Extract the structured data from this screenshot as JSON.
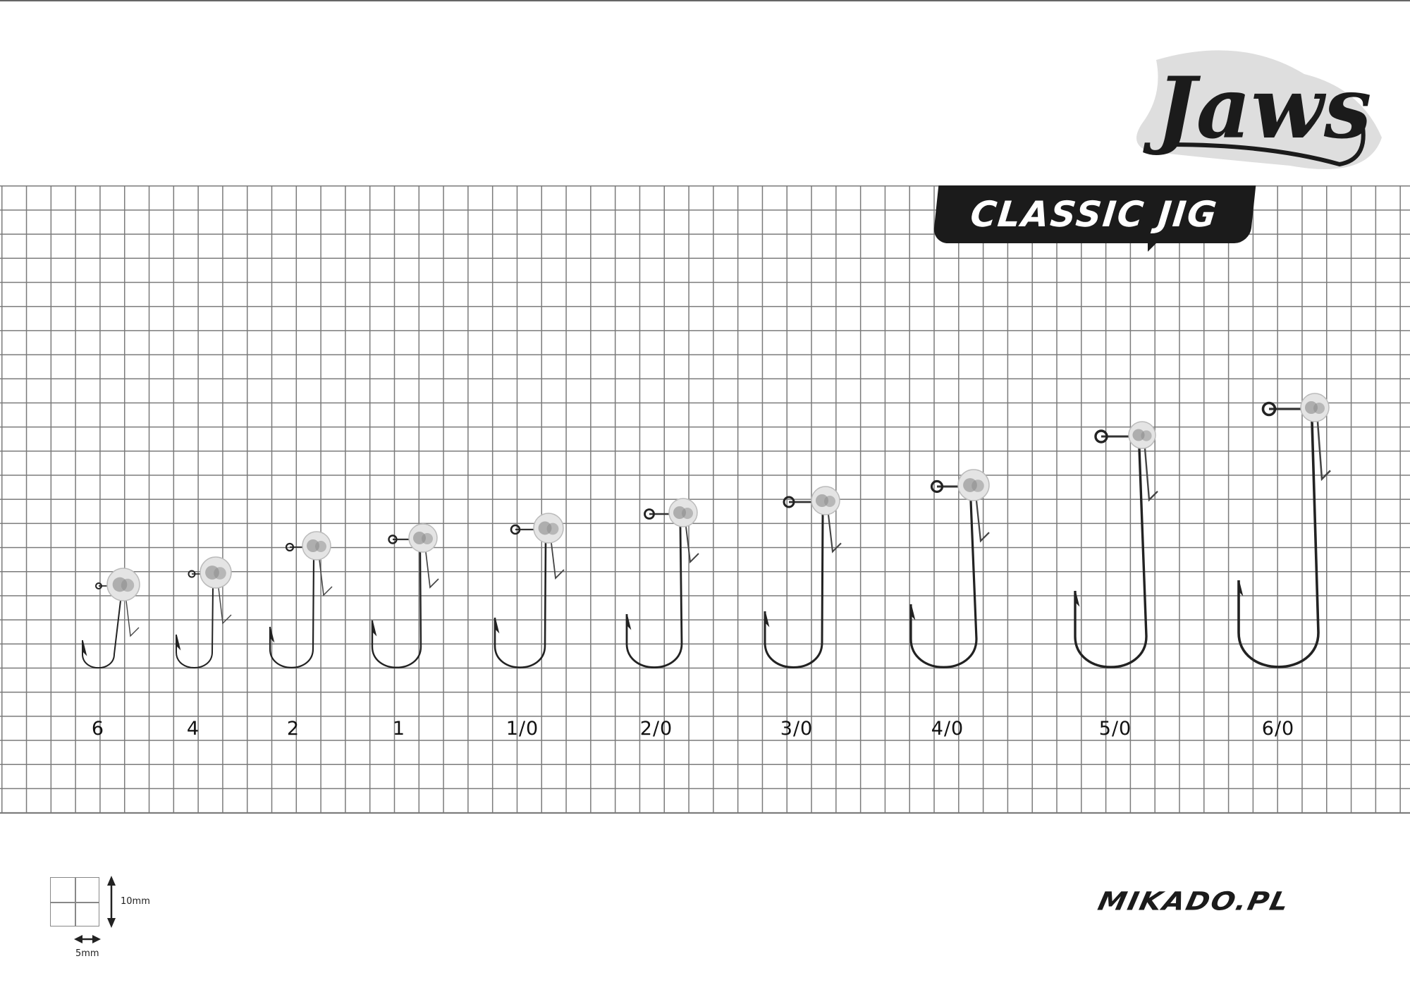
{
  "brand_logo": "Jaws",
  "product_badge": "CLASSIC JIG",
  "website": "MIKADO.PL",
  "hook_sizes": [
    "6",
    "4",
    "2",
    "1",
    "1/0",
    "2/0",
    "3/0",
    "4/0",
    "5/0",
    "6/0"
  ],
  "scale_legend": {
    "vertical": "10mm",
    "horizontal": "5mm"
  },
  "colors": {
    "grid": "#7a7a7a",
    "hook": "#222222",
    "badge_bg": "#1b1b1b",
    "logo_shadow": "#dedede"
  }
}
